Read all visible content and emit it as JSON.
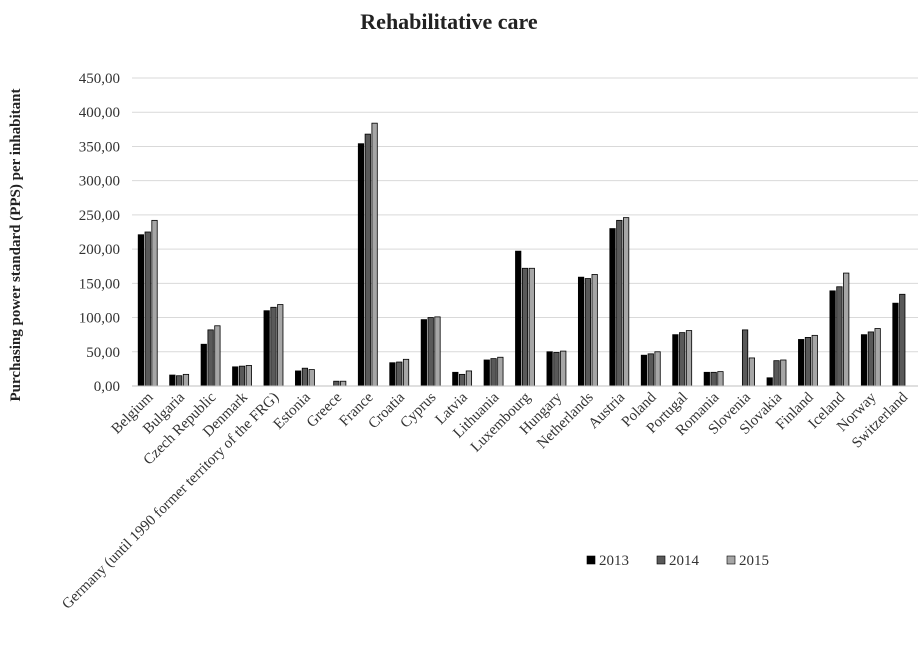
{
  "chart_data": {
    "type": "bar",
    "title": "Rehabilitative care",
    "ylabel": "Purchasing power standard (PPS) per inhabitant",
    "xlabel": "",
    "ylim": [
      0,
      450
    ],
    "yticks": [
      "0,00",
      "50,00",
      "100,00",
      "150,00",
      "200,00",
      "250,00",
      "300,00",
      "350,00",
      "400,00",
      "450,00"
    ],
    "grid": true,
    "legend_position": "bottom-right",
    "categories": [
      "Belgium",
      "Bulgaria",
      "Czech Republic",
      "Denmark",
      "Germany (until 1990 former territory of the FRG)",
      "Estonia",
      "Greece",
      "France",
      "Croatia",
      "Cyprus",
      "Latvia",
      "Lithuania",
      "Luxembourg",
      "Hungary",
      "Netherlands",
      "Austria",
      "Poland",
      "Portugal",
      "Romania",
      "Slovenia",
      "Slovakia",
      "Finland",
      "Iceland",
      "Norway",
      "Switzerland"
    ],
    "series": [
      {
        "name": "2013",
        "color": "#000000",
        "values": [
          221,
          16,
          61,
          28,
          110,
          22,
          null,
          354,
          34,
          97,
          20,
          38,
          197,
          50,
          159,
          230,
          45,
          75,
          20,
          null,
          12,
          68,
          139,
          75,
          121
        ]
      },
      {
        "name": "2014",
        "color": "#595959",
        "values": [
          225,
          15,
          82,
          29,
          115,
          26,
          7,
          368,
          35,
          100,
          17,
          40,
          172,
          49,
          157,
          242,
          47,
          78,
          20,
          82,
          37,
          71,
          145,
          79,
          134
        ]
      },
      {
        "name": "2015",
        "color": "#a6a6a6",
        "values": [
          242,
          17,
          88,
          30,
          119,
          24,
          7,
          384,
          39,
          101,
          22,
          42,
          172,
          51,
          163,
          246,
          50,
          81,
          21,
          41,
          38,
          74,
          165,
          84,
          null
        ]
      }
    ]
  }
}
